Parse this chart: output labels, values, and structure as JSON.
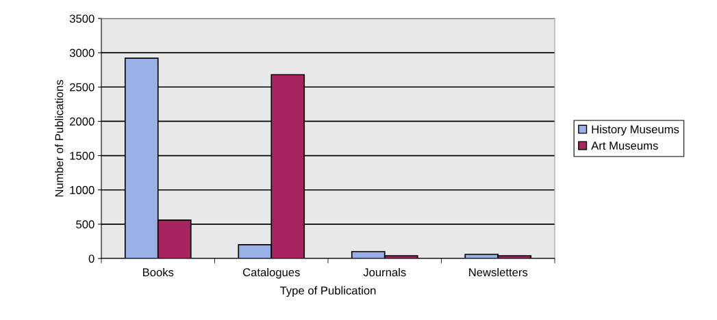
{
  "chart_data": {
    "type": "bar",
    "xlabel": "Type of Publication",
    "ylabel": "Number of Publications",
    "categories": [
      "Books",
      "Catalogues",
      "Journals",
      "Newsletters"
    ],
    "series": [
      {
        "name": "History Museums",
        "color": "#9aafe6",
        "values": [
          2920,
          200,
          100,
          60
        ]
      },
      {
        "name": "Art Museums",
        "color": "#a8245e",
        "values": [
          560,
          2680,
          40,
          40
        ]
      }
    ],
    "ylim": [
      0,
      3500
    ],
    "yticks": [
      0,
      500,
      1000,
      1500,
      2000,
      2500,
      3000,
      3500
    ],
    "grid": "y",
    "legend": "right"
  }
}
